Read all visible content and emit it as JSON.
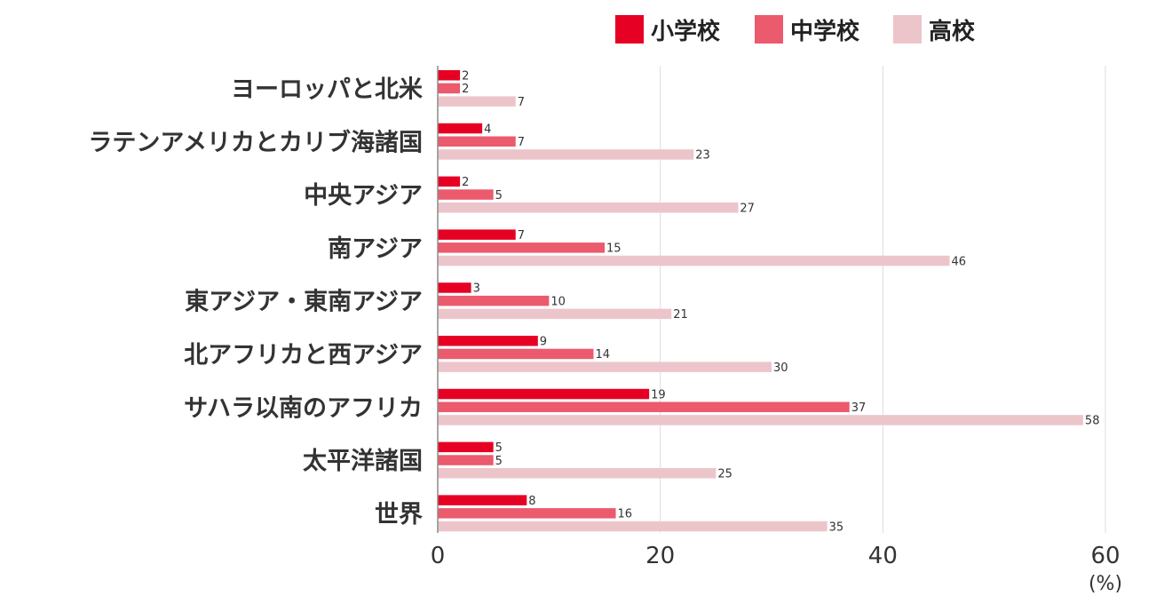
{
  "chart_data": {
    "type": "bar",
    "orientation": "horizontal",
    "categories": [
      "ヨーロッパと北米",
      "ラテンアメリカとカリブ海諸国",
      "中央アジア",
      "南アジア",
      "東アジア・東南アジア",
      "北アフリカと西アジア",
      "サハラ以南のアフリカ",
      "太平洋諸国",
      "世界"
    ],
    "series": [
      {
        "name": "小学校",
        "color": "#e60023",
        "values": [
          2,
          4,
          2,
          7,
          3,
          9,
          19,
          5,
          8
        ]
      },
      {
        "name": "中学校",
        "color": "#eb5a6d",
        "values": [
          2,
          7,
          5,
          15,
          10,
          14,
          37,
          5,
          16
        ]
      },
      {
        "name": "高校",
        "color": "#ecc5cb",
        "values": [
          7,
          23,
          27,
          46,
          21,
          30,
          58,
          25,
          35
        ]
      }
    ],
    "xlim": [
      0,
      60
    ],
    "xticks": [
      "0",
      "20",
      "40",
      "60"
    ],
    "unit": "(%)",
    "legend_position": "top-right",
    "grid": true
  }
}
